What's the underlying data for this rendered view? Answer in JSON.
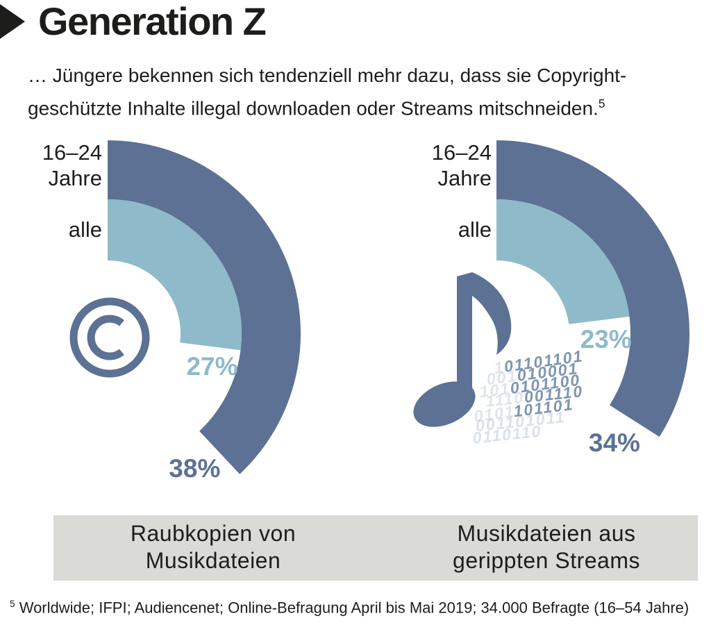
{
  "title": {
    "marker_icon": "right-triangle",
    "text": "Generation Z"
  },
  "subtitle": {
    "line1": "… Jüngere bekennen sich tendenziell mehr dazu, dass sie Copyright-",
    "line2": "geschützte Inhalte illegal downloaden oder Streams mitschneiden.",
    "footnote_ref": "5"
  },
  "footnote": {
    "ref": "5",
    "text": "Worldwide; IFPI; Audiencenet; Online-Befragung April bis Mai 2019; 34.000 Befragte (16–54 Jahre)"
  },
  "colors": {
    "ink": "#1d1d1b",
    "dark_arc": "#5c7194",
    "light_arc": "#8fbac9",
    "band_bg": "#dadad7",
    "binary": "#64809f",
    "binary_faint": "#9fb0c6"
  },
  "binary_rows": [
    {
      "faded": "1",
      "main": "01101101",
      "faint_row": false
    },
    {
      "faded": "001",
      "main": "010001",
      "faint_row": false
    },
    {
      "faded": "101",
      "main": "0101100",
      "faint_row": false
    },
    {
      "faded": "1110",
      "main": "001110",
      "faint_row": false
    },
    {
      "faded": "0101",
      "main": "101101",
      "faint_row": false
    },
    {
      "faded": "",
      "main": "001101011",
      "faint_row": true
    },
    {
      "faded": "",
      "main": "0110110",
      "faint_row": true
    }
  ],
  "chart_data": [
    {
      "type": "radial-bar",
      "caption": "Raubkopien von Musikdateien",
      "caption_lines": [
        "Raubkopien von",
        "Musikdateien"
      ],
      "icon": "copyright-icon",
      "unit": "%",
      "angle_scale": "full circle = 100%",
      "series": [
        {
          "name": "16–24 Jahre",
          "name_lines": [
            "16–24",
            "Jahre"
          ],
          "value": 38,
          "label": "38%",
          "ring": "outer",
          "color_key": "dark_arc"
        },
        {
          "name": "alle",
          "name_lines": [
            "alle"
          ],
          "value": 27,
          "label": "27%",
          "ring": "inner",
          "color_key": "light_arc"
        }
      ]
    },
    {
      "type": "radial-bar",
      "caption": "Musikdateien aus gerippten Streams",
      "caption_lines": [
        "Musikdateien aus",
        "gerippten Streams"
      ],
      "icon": "music-note-binary-icon",
      "unit": "%",
      "angle_scale": "full circle = 100%",
      "series": [
        {
          "name": "16–24 Jahre",
          "name_lines": [
            "16–24",
            "Jahre"
          ],
          "value": 34,
          "label": "34%",
          "ring": "outer",
          "color_key": "dark_arc"
        },
        {
          "name": "alle",
          "name_lines": [
            "alle"
          ],
          "value": 23,
          "label": "23%",
          "ring": "inner",
          "color_key": "light_arc"
        }
      ]
    }
  ]
}
